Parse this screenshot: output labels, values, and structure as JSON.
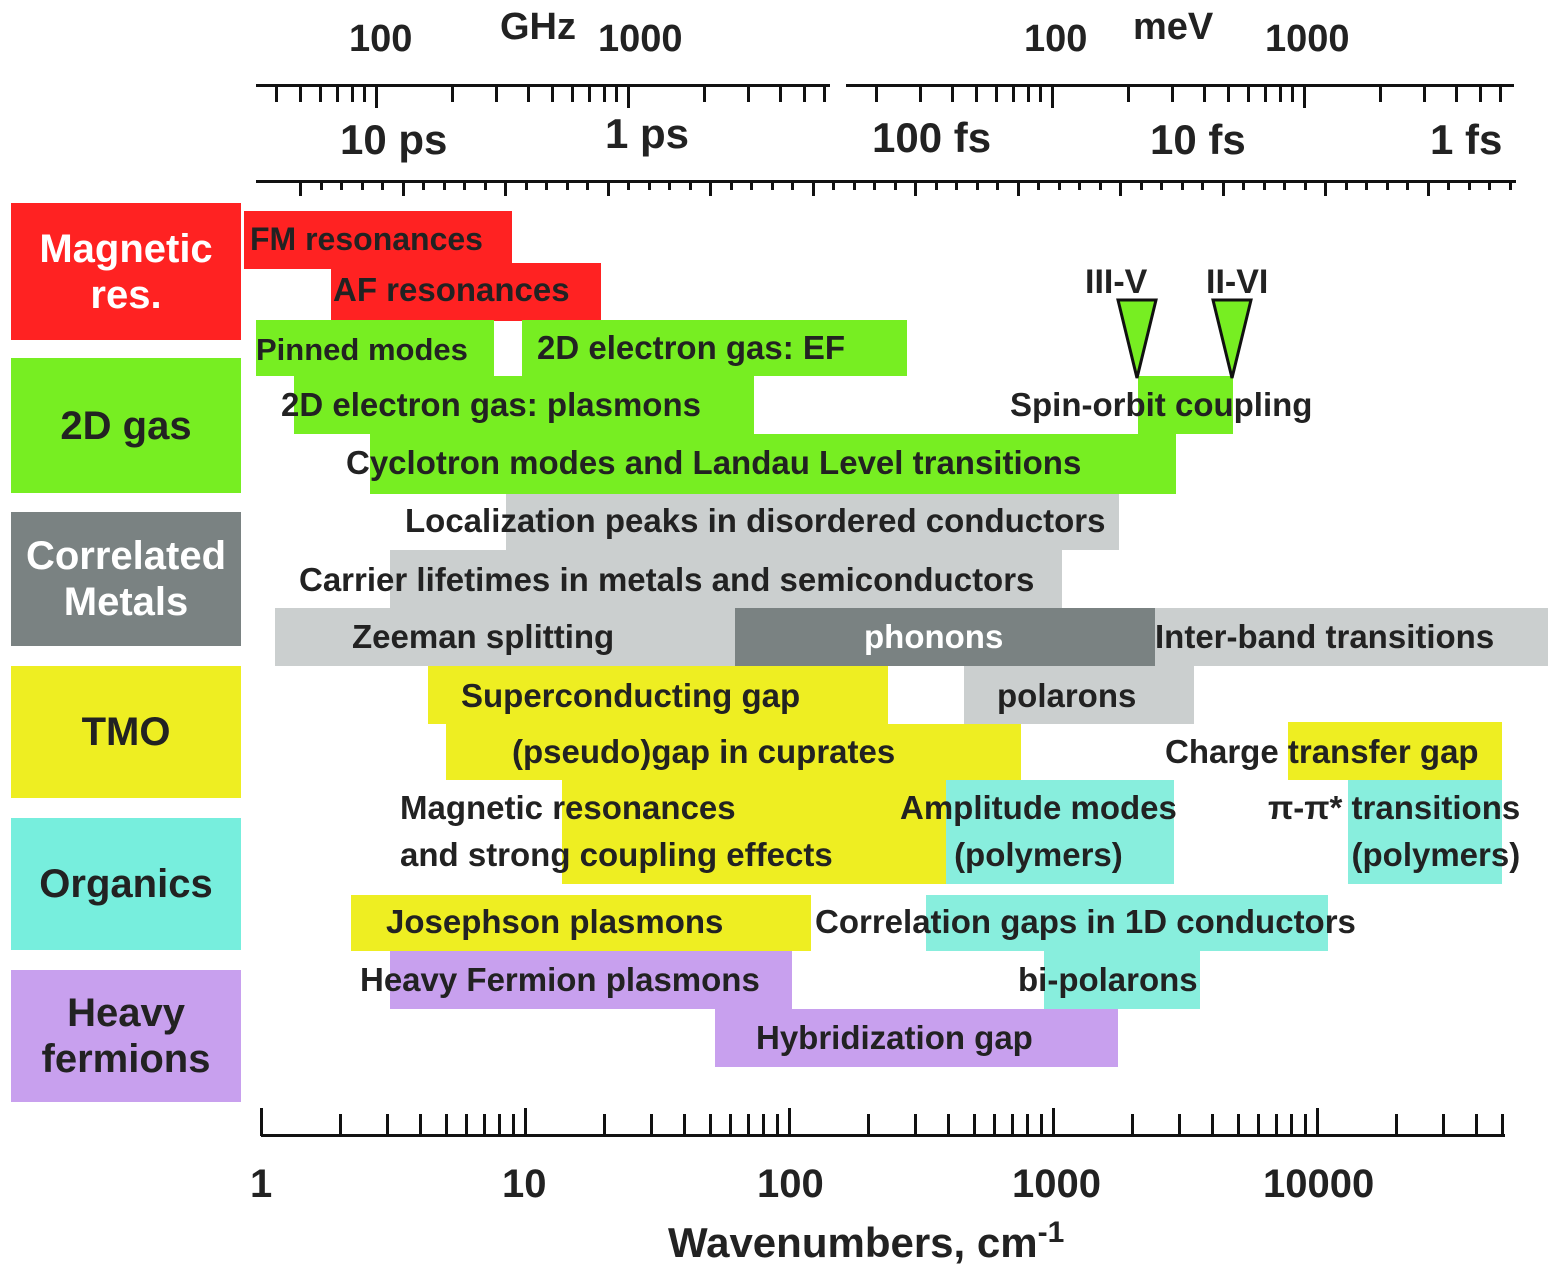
{
  "categories": [
    {
      "label": "Magnetic\nres.",
      "color": "#ff2222",
      "text_color": "#ffffff"
    },
    {
      "label": "2D gas",
      "color": "#77ee22",
      "text_color": "#222222"
    },
    {
      "label": "Correlated\nMetals",
      "color": "#7a8282",
      "text_color": "#ffffff"
    },
    {
      "label": "TMO",
      "color": "#eeee22",
      "text_color": "#222222"
    },
    {
      "label": "Organics",
      "color": "#77eedd",
      "text_color": "#222222"
    },
    {
      "label": "Heavy\nfermions",
      "color": "#c8a0ee",
      "text_color": "#222222"
    }
  ],
  "axes": {
    "top_unit_ghz": "GHz",
    "top_unit_mev": "meV",
    "ghz_labels": [
      "100",
      "1000"
    ],
    "mev_labels": [
      "100",
      "1000"
    ],
    "time_labels": [
      "10 ps",
      "1 ps",
      "100 fs",
      "10 fs",
      "1 fs"
    ],
    "bottom_labels": [
      "1",
      "10",
      "100",
      "1000",
      "10000"
    ],
    "xlabel": "Wavenumbers, cm",
    "xlabel_sup": "-1",
    "scale": "log"
  },
  "markers": [
    {
      "label": "III-V",
      "wavenumber": 2100
    },
    {
      "label": "II-VI",
      "wavenumber": 4600
    }
  ],
  "chart_data": {
    "type": "range-bar",
    "x_scale": "log",
    "x_range_cm1": [
      1,
      50000
    ],
    "xlabel": "Wavenumbers, cm-1",
    "phenomena": [
      {
        "label": "FM resonances",
        "category": "Magnetic res.",
        "x_range": [
          1,
          9
        ]
      },
      {
        "label": "AF resonances",
        "category": "Magnetic res.",
        "x_range": [
          2,
          19
        ]
      },
      {
        "label": "Pinned modes",
        "category": "2D gas",
        "x_range": [
          1,
          8
        ]
      },
      {
        "label": "2D electron gas: EF",
        "category": "2D gas",
        "x_range": [
          10,
          180
        ]
      },
      {
        "label": "2D electron gas: plasmons",
        "category": "2D gas",
        "x_range": [
          1.3,
          68
        ]
      },
      {
        "label": "Spin-orbit coupling",
        "category": "2D gas",
        "x_range": [
          2100,
          4600
        ]
      },
      {
        "label": "Cyclotron modes and Landau Level transitions",
        "category": "2D gas",
        "x_range": [
          2.6,
          2800
        ]
      },
      {
        "label": "Localization peaks in disordered conductors",
        "category": "Correlated Metals",
        "x_range": [
          8,
          1700
        ]
      },
      {
        "label": "Carrier lifetimes in metals and semiconductors",
        "category": "Correlated Metals",
        "x_range": [
          3,
          1000
        ]
      },
      {
        "label": "Zeeman splitting",
        "category": "Correlated Metals",
        "x_range": [
          1.1,
          65
        ]
      },
      {
        "label": "phonons",
        "category": "Correlated Metals",
        "x_range": [
          65,
          2350
        ]
      },
      {
        "label": "Inter-band transitions",
        "category": "Correlated Metals",
        "x_range": [
          2350,
          50000
        ]
      },
      {
        "label": "Superconducting gap",
        "category": "TMO",
        "x_range": [
          4.5,
          240
        ]
      },
      {
        "label": "polarons",
        "category": "Correlated Metals",
        "x_range": [
          480,
          3300
        ]
      },
      {
        "label": "(pseudo)gap in cuprates",
        "category": "TMO",
        "x_range": [
          5.3,
          720
        ]
      },
      {
        "label": "Charge transfer gap",
        "category": "TMO",
        "x_range": [
          6500,
          38000
        ]
      },
      {
        "label": "Magnetic resonances\nand  strong coupling effects",
        "category": "TMO",
        "x_range": [
          14,
          390
        ]
      },
      {
        "label": "Amplitude modes\n(polymers)",
        "category": "Organics",
        "x_range": [
          390,
          2850
        ]
      },
      {
        "label": "π-π* transitions\n(polymers)",
        "category": "Organics",
        "x_range": [
          13500,
          38000
        ]
      },
      {
        "label": "Josephson plasmons",
        "category": "TMO",
        "x_range": [
          2.3,
          110
        ]
      },
      {
        "label": "Correlation gaps in 1D conductors",
        "category": "Organics",
        "x_range": [
          330,
          11500
        ]
      },
      {
        "label": "Heavy Fermion plasmons",
        "category": "Heavy fermions",
        "x_range": [
          3,
          100
        ]
      },
      {
        "label": "bi-polarons",
        "category": "Organics",
        "x_range": [
          980,
          3700
        ]
      },
      {
        "label": "Hybridization gap",
        "category": "Heavy fermions",
        "x_range": [
          55,
          1700
        ]
      }
    ]
  }
}
